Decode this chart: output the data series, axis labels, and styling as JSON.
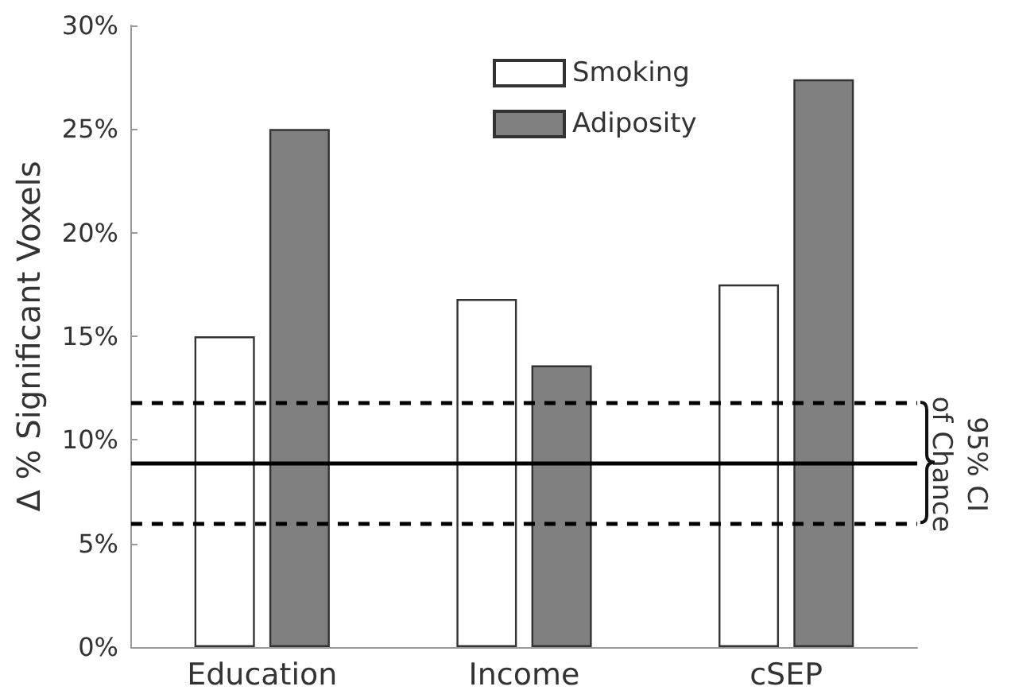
{
  "chart_data": {
    "type": "bar",
    "ylabel": "Δ % Significant Voxels",
    "categories": [
      "Education",
      "Income",
      "cSEP"
    ],
    "series": [
      {
        "name": "Smoking",
        "color": "#ffffff",
        "values": [
          15.0,
          16.8,
          17.5
        ]
      },
      {
        "name": "Adiposity",
        "color": "#808080",
        "values": [
          25.0,
          13.6,
          27.4
        ]
      }
    ],
    "ylim": [
      0,
      30
    ],
    "yticks": [
      {
        "value": 0,
        "label": "0%"
      },
      {
        "value": 5,
        "label": "5%"
      },
      {
        "value": 10,
        "label": "10%"
      },
      {
        "value": 15,
        "label": "15%"
      },
      {
        "value": 20,
        "label": "20%"
      },
      {
        "value": 25,
        "label": "25%"
      },
      {
        "value": 30,
        "label": "30%"
      }
    ],
    "ref_lines": [
      {
        "axis": "y",
        "value": 11.8,
        "label": null,
        "color": "#000000",
        "line_style": "dashed"
      },
      {
        "axis": "y",
        "value": 8.9,
        "label": null,
        "color": "#000000",
        "line_style": "solid"
      },
      {
        "axis": "y",
        "value": 6.0,
        "label": null,
        "color": "#000000",
        "line_style": "dashed"
      }
    ],
    "annotations": [
      "95% CI\nof Chance"
    ],
    "grid": false,
    "legend": "top"
  }
}
